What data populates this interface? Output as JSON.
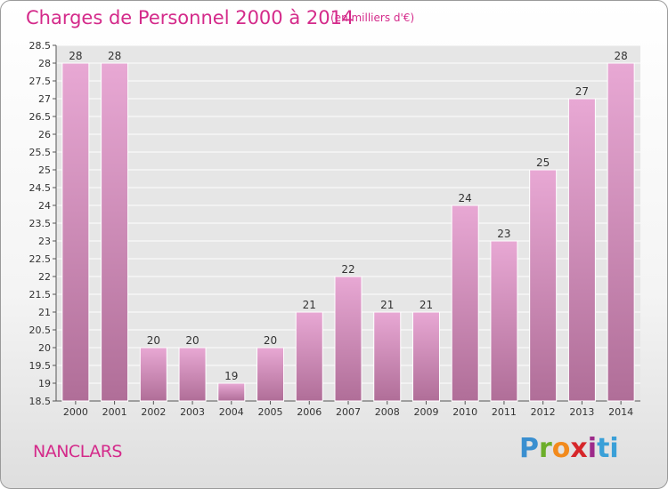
{
  "header": {
    "title": "Charges de Personnel 2000 à 2014",
    "subtitle": "(en milliers d'€)"
  },
  "footer": {
    "town": "NANCLARS",
    "logo": [
      "P",
      "r",
      "o",
      "x",
      "i",
      "ti"
    ]
  },
  "colors": {
    "title": "#d42a8a",
    "bar_light": "#e8a8d4",
    "bar_dark": "#b06e98"
  },
  "chart_data": {
    "type": "bar",
    "title": "Charges de Personnel 2000 à 2014",
    "subtitle": "(en milliers d'€)",
    "categories": [
      "2000",
      "2001",
      "2002",
      "2003",
      "2004",
      "2005",
      "2006",
      "2007",
      "2008",
      "2009",
      "2010",
      "2011",
      "2012",
      "2013",
      "2014"
    ],
    "values": [
      28,
      28,
      20,
      20,
      19,
      20,
      21,
      22,
      21,
      21,
      24,
      23,
      25,
      27,
      28
    ],
    "ylim": [
      18.5,
      28.5
    ],
    "yticks": [
      18.5,
      19,
      19.5,
      20,
      20.5,
      21,
      21.5,
      22,
      22.5,
      23,
      23.5,
      24,
      24.5,
      25,
      25.5,
      26,
      26.5,
      27,
      27.5,
      28,
      28.5
    ],
    "grid": true,
    "legend": "none"
  }
}
